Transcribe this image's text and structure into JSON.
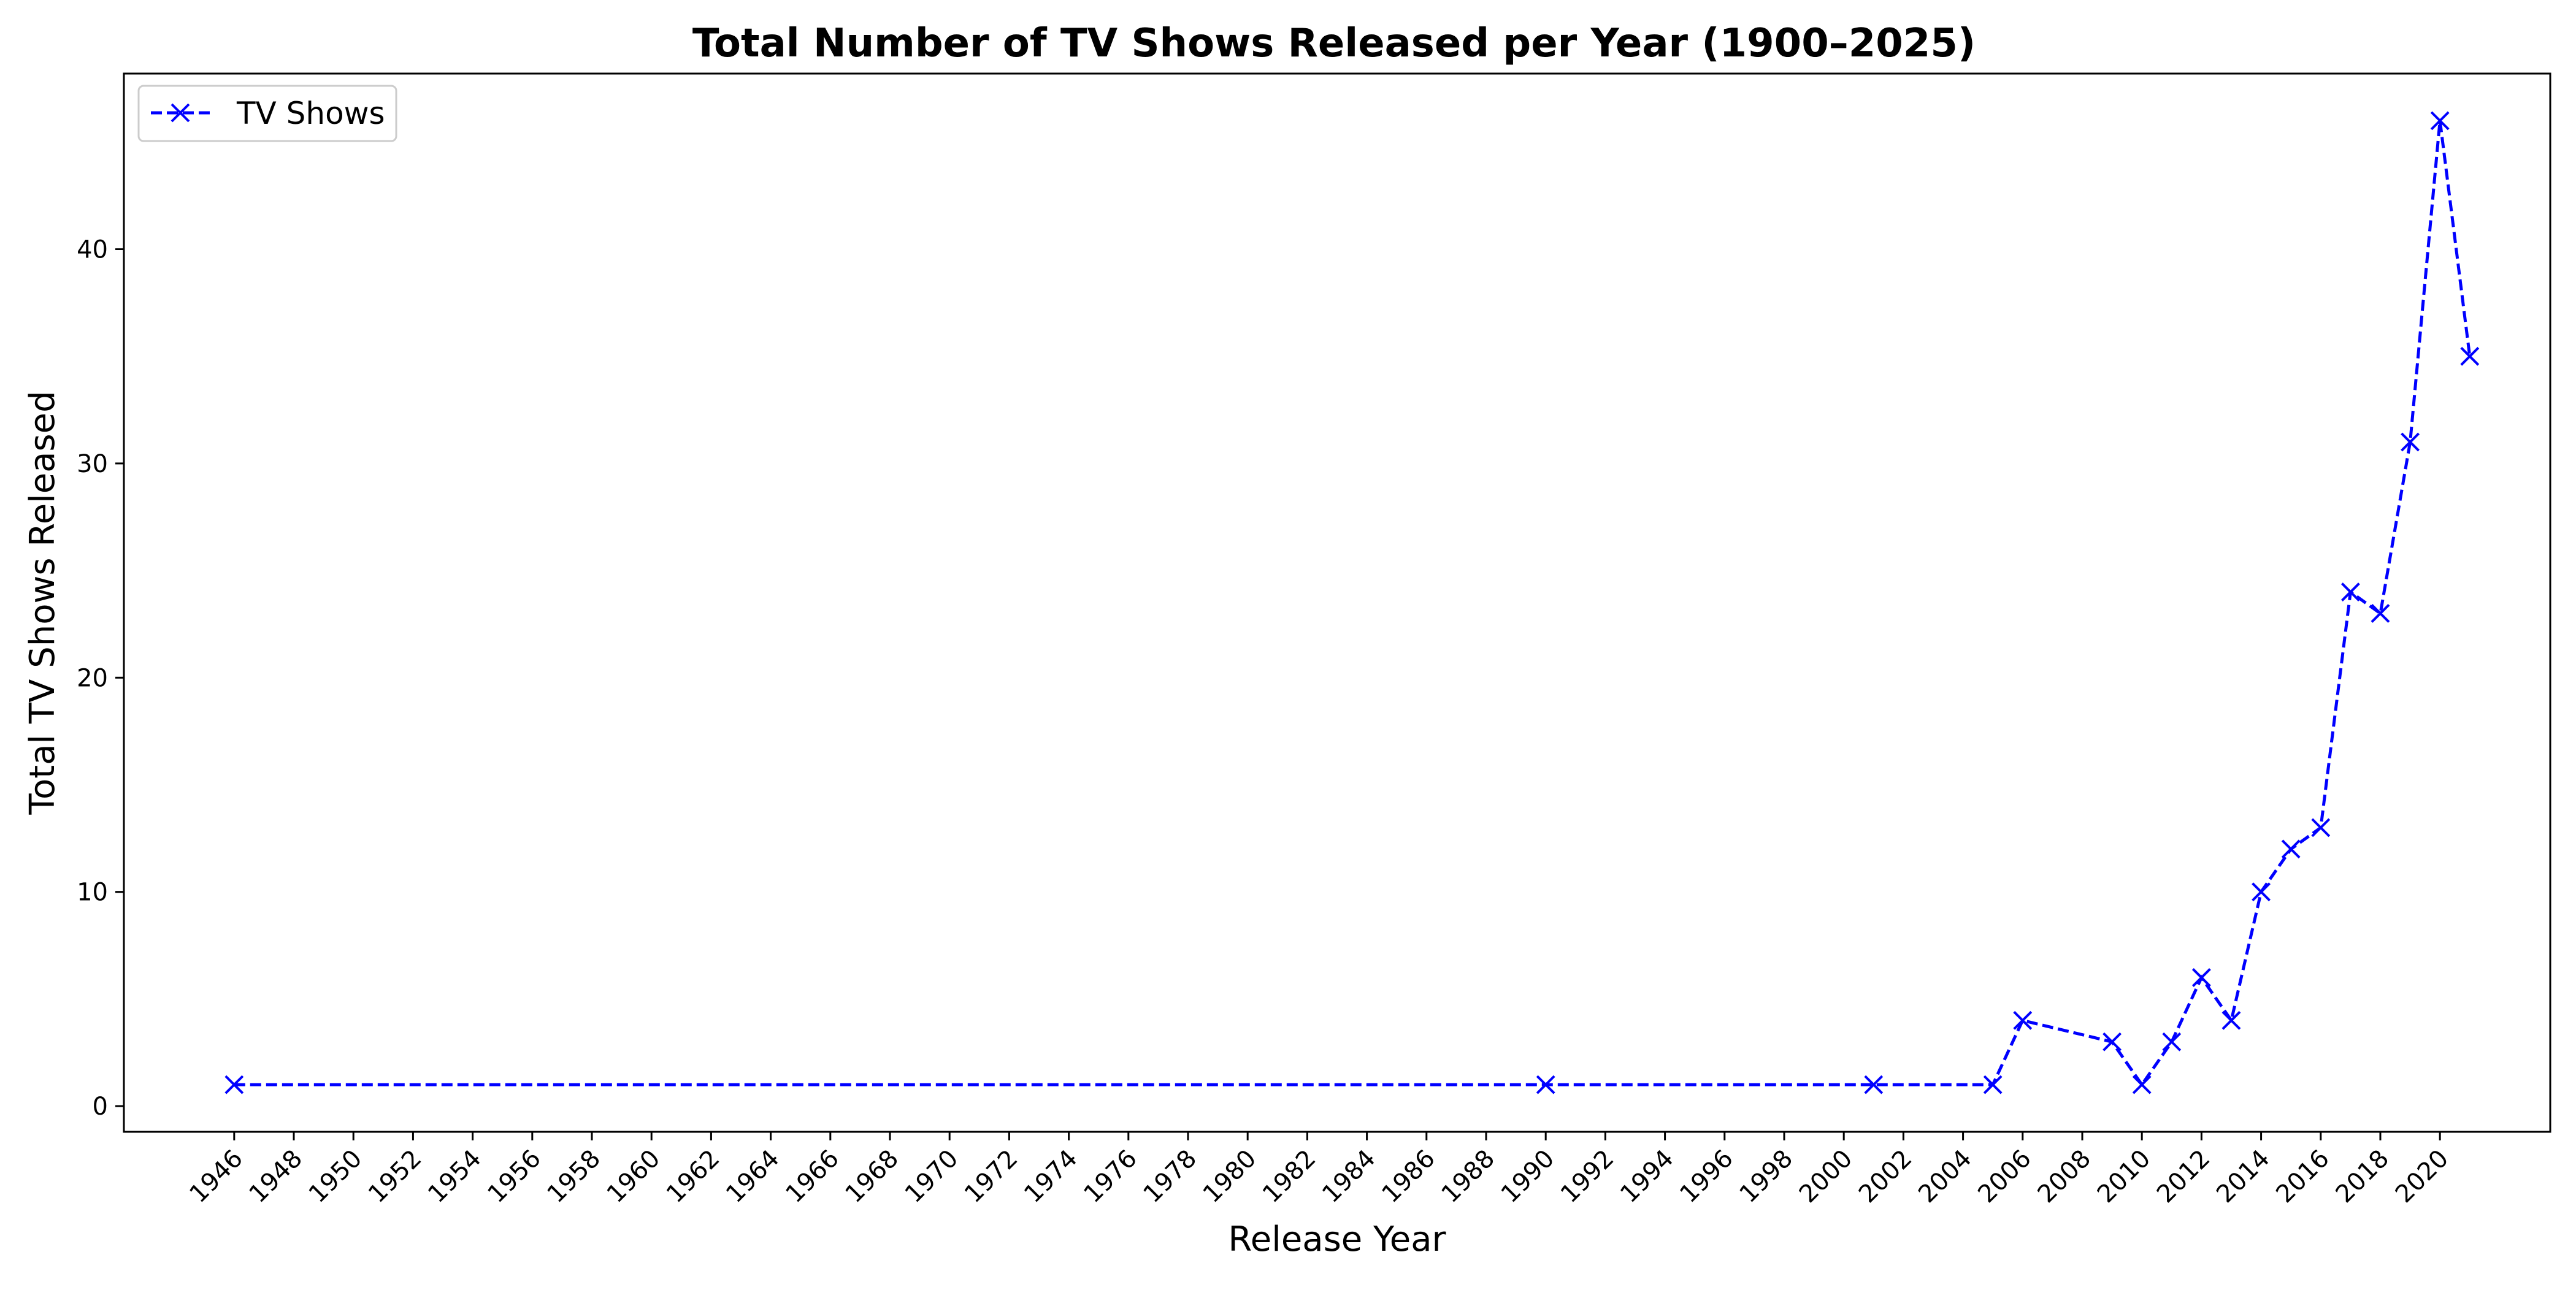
{
  "chart_data": {
    "type": "line",
    "title": "Total Number of TV Shows Released per Year (1900–2025)",
    "xlabel": "Release Year",
    "ylabel": "Total TV Shows Released",
    "xlim": [
      1942.3,
      2023.7
    ],
    "ylim": [
      -1.2,
      48.2
    ],
    "x_ticks": [
      1946,
      1948,
      1950,
      1952,
      1954,
      1956,
      1958,
      1960,
      1962,
      1964,
      1966,
      1968,
      1970,
      1972,
      1974,
      1976,
      1978,
      1980,
      1982,
      1984,
      1986,
      1988,
      1990,
      1992,
      1994,
      1996,
      1998,
      2000,
      2002,
      2004,
      2006,
      2008,
      2010,
      2012,
      2014,
      2016,
      2018,
      2020
    ],
    "y_ticks": [
      0,
      10,
      20,
      30,
      40
    ],
    "grid": false,
    "legend": {
      "position": "top-left",
      "entries": [
        "TV Shows"
      ]
    },
    "series": [
      {
        "name": "TV Shows",
        "color": "#0000ff",
        "line_style": "dashed",
        "marker": "x",
        "x": [
          1946,
          1990,
          2001,
          2005,
          2006,
          2009,
          2010,
          2011,
          2012,
          2013,
          2014,
          2015,
          2016,
          2017,
          2018,
          2019,
          2020,
          2021
        ],
        "y": [
          1,
          1,
          1,
          1,
          4,
          3,
          1,
          3,
          6,
          4,
          10,
          12,
          13,
          24,
          23,
          31,
          46,
          35
        ]
      }
    ]
  }
}
